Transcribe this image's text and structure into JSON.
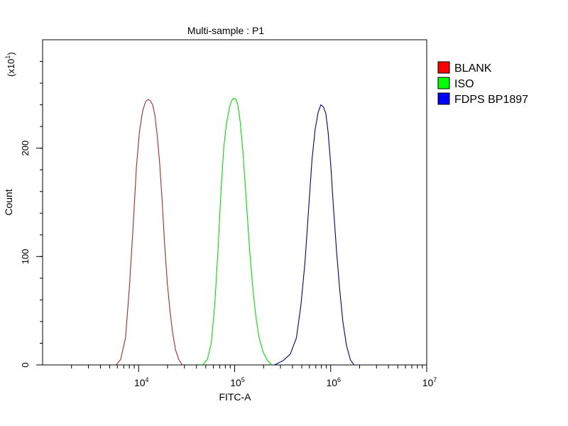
{
  "chart_data": {
    "type": "line",
    "title": "Multi-sample : P1",
    "xlabel": "FITC-A",
    "ylabel": "Count",
    "y_multiplier": "(x10",
    "y_multiplier_exp": "1",
    "y_multiplier_close": ")",
    "x_scale": "log",
    "xlim": [
      1000,
      10000000
    ],
    "ylim": [
      0,
      300
    ],
    "x_ticks": [
      {
        "base": "10",
        "exp": "4",
        "value": 10000
      },
      {
        "base": "10",
        "exp": "5",
        "value": 100000
      },
      {
        "base": "10",
        "exp": "6",
        "value": 1000000
      },
      {
        "base": "10",
        "exp": "7",
        "value": 10000000
      }
    ],
    "y_ticks": [
      {
        "label": "0",
        "value": 0
      },
      {
        "label": "100",
        "value": 100
      },
      {
        "label": "200",
        "value": 200
      }
    ],
    "grid": false,
    "legend_position": "right",
    "series": [
      {
        "name": "BLANK",
        "color": "#ff0000",
        "line_color": "#a52a2a",
        "x": [
          5800,
          6500,
          7300,
          8000,
          8800,
          9500,
          10200,
          11000,
          11800,
          12500,
          13200,
          14000,
          14800,
          15700,
          16600,
          17600,
          18700,
          19900,
          21200,
          22600,
          24200,
          26200,
          28500
        ],
        "y": [
          0,
          5,
          25,
          70,
          130,
          183,
          215,
          234,
          243,
          245,
          244,
          240,
          230,
          210,
          185,
          150,
          110,
          75,
          50,
          30,
          14,
          5,
          0
        ]
      },
      {
        "name": "ISO",
        "color": "#00ff00",
        "line_color": "#00e000",
        "x": [
          46000,
          52000,
          57000,
          62000,
          67000,
          72000,
          77000,
          82000,
          88000,
          93000,
          98000,
          103000,
          108000,
          114000,
          121000,
          128000,
          136000,
          145000,
          155000,
          166000,
          180000,
          198000,
          220000,
          245000
        ],
        "y": [
          0,
          5,
          20,
          55,
          105,
          160,
          200,
          222,
          237,
          244,
          246,
          245,
          240,
          225,
          200,
          170,
          135,
          100,
          70,
          45,
          25,
          12,
          4,
          0
        ]
      },
      {
        "name": "FDPS BP1897",
        "color": "#0000ff",
        "line_color": "#000080",
        "x": [
          260000,
          320000,
          380000,
          440000,
          490000,
          540000,
          590000,
          640000,
          690000,
          740000,
          790000,
          840000,
          890000,
          940000,
          1000000,
          1070000,
          1150000,
          1240000,
          1340000,
          1460000,
          1600000,
          1750000
        ],
        "y": [
          0,
          4,
          10,
          25,
          55,
          95,
          145,
          190,
          218,
          233,
          240,
          238,
          232,
          215,
          185,
          145,
          105,
          70,
          40,
          18,
          5,
          0
        ]
      }
    ]
  }
}
